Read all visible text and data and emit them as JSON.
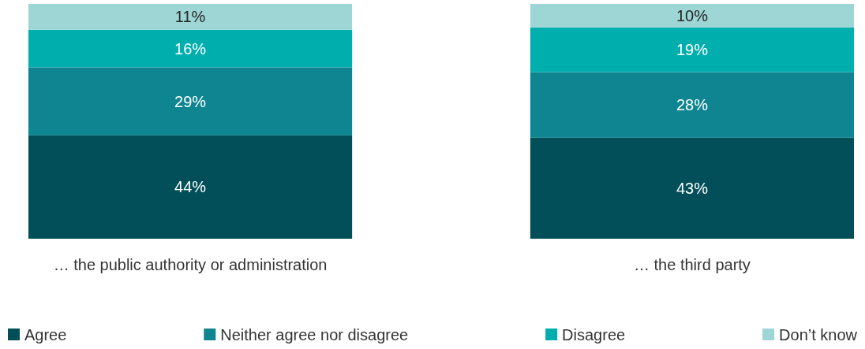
{
  "chart_data": {
    "type": "bar",
    "stacked": true,
    "legend": "bottom",
    "categories": [
      "… the public authority or administration",
      "… the third party"
    ],
    "series": [
      {
        "name": "Agree",
        "color": "#024f5a",
        "values": [
          44,
          43
        ],
        "value_labels": [
          "44%",
          "43%"
        ]
      },
      {
        "name": "Neither agree nor disagree",
        "color": "#0e8590",
        "values": [
          29,
          28
        ],
        "value_labels": [
          "29%",
          "28%"
        ]
      },
      {
        "name": "Disagree",
        "color": "#00aeae",
        "values": [
          16,
          19
        ],
        "value_labels": [
          "16%",
          "19%"
        ]
      },
      {
        "name": "Don’t know",
        "color": "#9ed6d5",
        "values": [
          11,
          10
        ],
        "value_labels": [
          "11%",
          "10%"
        ]
      }
    ]
  }
}
